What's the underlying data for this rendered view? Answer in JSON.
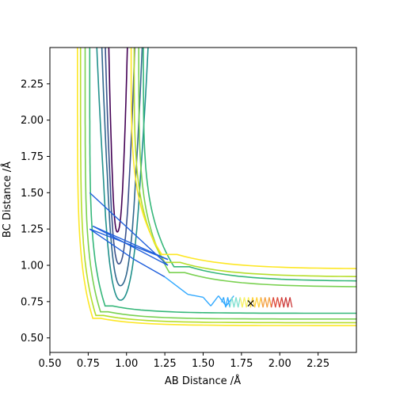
{
  "chart_data": {
    "type": "contour",
    "title": "",
    "xlabel": "AB Distance /Å",
    "ylabel": "BC Distance /Å",
    "xlim": [
      0.5,
      2.5
    ],
    "ylim": [
      0.4,
      2.5
    ],
    "xticks": [
      "0.50",
      "0.75",
      "1.00",
      "1.25",
      "1.50",
      "1.75",
      "2.00",
      "2.25"
    ],
    "yticks": [
      "0.50",
      "0.75",
      "1.00",
      "1.25",
      "1.50",
      "1.75",
      "2.00",
      "2.25"
    ],
    "grid": false,
    "contour_levels": [
      {
        "color": "#440154",
        "valley_x": 0.94,
        "valley_halfwidth": 0.07,
        "y_min": 1.23,
        "channel": false
      },
      {
        "color": "#3b528b",
        "valley_x": 0.95,
        "valley_halfwidth": 0.11,
        "y_min": 1.01,
        "channel": false
      },
      {
        "color": "#31688e",
        "valley_x": 0.96,
        "valley_halfwidth": 0.15,
        "y_min": 0.86,
        "channel": false
      },
      {
        "color": "#21918c",
        "valley_x": 0.96,
        "valley_halfwidth": 0.19,
        "y_min": 0.76,
        "channel": false
      },
      {
        "color": "#35b779",
        "corner_x": 0.86,
        "corner_y": 0.67,
        "channel_upper_y": 0.89,
        "cross_x": 1.2,
        "channel": true
      },
      {
        "color": "#7ad151",
        "corner_x": 0.83,
        "corner_y": 0.63,
        "channel_upper_y": 0.85,
        "channel": true
      },
      {
        "color": "#b5de2b",
        "corner_x": 0.8,
        "corner_y": 0.605,
        "channel_upper_y": 0.92,
        "channel": true
      },
      {
        "color": "#fde725",
        "corner_x": 0.78,
        "corner_y": 0.585,
        "channel_upper_y": 0.975,
        "channel": true
      }
    ],
    "trajectory": {
      "color_start": "#1f5fdc",
      "color_end": "#2fa8ff",
      "points": [
        [
          0.76,
          1.5
        ],
        [
          1.27,
          1.0
        ],
        [
          0.78,
          1.27
        ],
        [
          1.27,
          1.04
        ],
        [
          0.76,
          1.25
        ],
        [
          1.05,
          1.04
        ],
        [
          1.25,
          0.92
        ],
        [
          1.4,
          0.8
        ],
        [
          1.5,
          0.78
        ],
        [
          1.55,
          0.72
        ],
        [
          1.6,
          0.79
        ],
        [
          1.65,
          0.72
        ],
        [
          1.7,
          0.79
        ]
      ]
    },
    "product_oscillation": {
      "x_start": 1.62,
      "x_end": 2.08,
      "y_center": 0.745,
      "amplitude": 0.035,
      "cycles": 17,
      "color_stops": [
        "#2fa8ff",
        "#7ee0d0",
        "#f8f060",
        "#ffd23a",
        "#f4a040",
        "#dd4a3a",
        "#cc3a3a"
      ]
    },
    "marker": {
      "x": 1.81,
      "y": 0.74,
      "symbol": "×",
      "color": "#cc1111"
    }
  }
}
